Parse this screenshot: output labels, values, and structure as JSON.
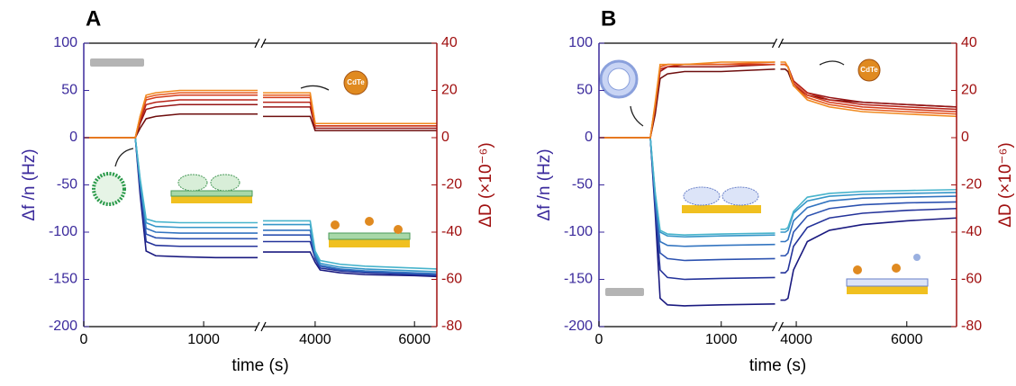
{
  "chart_data": [
    {
      "type": "line",
      "panel_label": "A",
      "xlabel": "time (s)",
      "ylabel": "Δf /n (Hz)",
      "y2label": "ΔD (×10⁻⁶)",
      "annotation": "CdTe",
      "xlim": [
        0,
        6450
      ],
      "x_break": [
        1450,
        2950
      ],
      "xticks": [
        0,
        1000,
        4000,
        6000
      ],
      "ylim": [
        -200,
        100
      ],
      "yticks": [
        -200,
        -150,
        -100,
        -50,
        0,
        50,
        100
      ],
      "y2lim": [
        -80,
        40
      ],
      "y2ticks": [
        -80,
        -60,
        -40,
        -20,
        0,
        20,
        40
      ],
      "x": [
        0,
        430,
        470,
        520,
        600,
        800,
        1100,
        1450,
        2000,
        2950,
        3900,
        4000,
        4100,
        4500,
        5000,
        6000,
        6450
      ],
      "series": [
        {
          "color": "#1a1a80",
          "values": [
            0,
            0,
            -60,
            -120,
            -125,
            -126,
            -127,
            -127,
            null,
            -121,
            -121,
            -132,
            -140,
            -143,
            -145,
            -146,
            -147
          ]
        },
        {
          "color": "#24339a",
          "values": [
            0,
            0,
            -55,
            -110,
            -114,
            -115,
            -115,
            -115,
            null,
            -110,
            -110,
            -128,
            -138,
            -141,
            -143,
            -145,
            -146
          ]
        },
        {
          "color": "#2c52b0",
          "values": [
            0,
            0,
            -50,
            -102,
            -106,
            -107,
            -107,
            -107,
            null,
            -103,
            -103,
            -126,
            -136,
            -140,
            -142,
            -144,
            -145
          ]
        },
        {
          "color": "#3274c0",
          "values": [
            0,
            0,
            -48,
            -96,
            -100,
            -101,
            -101,
            -101,
            null,
            -98,
            -98,
            -125,
            -135,
            -139,
            -141,
            -143,
            -144
          ]
        },
        {
          "color": "#3596c8",
          "values": [
            0,
            0,
            -45,
            -90,
            -94,
            -95,
            -95,
            -95,
            null,
            -92,
            -92,
            -122,
            -133,
            -137,
            -139,
            -141,
            -142
          ]
        },
        {
          "color": "#48b4cc",
          "values": [
            0,
            0,
            -43,
            -86,
            -89,
            -90,
            -90,
            -90,
            null,
            -88,
            -88,
            -120,
            -130,
            -134,
            -136,
            -138,
            -139
          ]
        },
        {
          "color": "#6e0e0e",
          "axis": "y2",
          "values": [
            0,
            0,
            4,
            8,
            9,
            10,
            10,
            10,
            null,
            9,
            9,
            3,
            3,
            3,
            3,
            3,
            3
          ]
        },
        {
          "color": "#961616",
          "axis": "y2",
          "values": [
            0,
            0,
            6,
            12,
            13,
            14,
            14,
            14,
            null,
            13,
            13,
            4,
            4,
            4,
            4,
            4,
            4
          ]
        },
        {
          "color": "#b82418",
          "axis": "y2",
          "values": [
            0,
            0,
            7,
            14,
            15,
            16,
            16,
            16,
            null,
            15,
            15,
            5,
            5,
            5,
            5,
            5,
            5
          ]
        },
        {
          "color": "#d43c1c",
          "axis": "y2",
          "values": [
            0,
            0,
            8,
            16,
            17,
            18,
            18,
            18,
            null,
            17,
            17,
            5,
            5,
            5,
            5,
            5,
            5
          ]
        },
        {
          "color": "#e65a1e",
          "axis": "y2",
          "values": [
            0,
            0,
            9,
            17,
            18,
            19,
            19,
            19,
            null,
            18,
            18,
            6,
            6,
            6,
            6,
            6,
            6
          ]
        },
        {
          "color": "#f08a20",
          "axis": "y2",
          "values": [
            0,
            0,
            9,
            18,
            19,
            20,
            20,
            20,
            null,
            19,
            19,
            6,
            6,
            6,
            6,
            6,
            6
          ]
        }
      ]
    },
    {
      "type": "line",
      "panel_label": "B",
      "xlabel": "time (s)",
      "ylabel": "Δf /n (Hz)",
      "y2label": "ΔD (×10⁻⁶)",
      "annotation": "CdTe",
      "xlim": [
        0,
        6900
      ],
      "x_break": [
        1440,
        3714
      ],
      "xticks": [
        0,
        1000,
        4000,
        6000
      ],
      "ylim": [
        -200,
        100
      ],
      "yticks": [
        -200,
        -150,
        -100,
        -50,
        0,
        50,
        100
      ],
      "y2lim": [
        -80,
        40
      ],
      "y2ticks": [
        -80,
        -60,
        -40,
        -20,
        0,
        20,
        40
      ],
      "x": [
        0,
        420,
        460,
        500,
        560,
        700,
        1000,
        1440,
        2000,
        3714,
        3800,
        3850,
        3950,
        4200,
        4600,
        5200,
        6000,
        6900
      ],
      "series": [
        {
          "color": "#1a1a80",
          "values": [
            0,
            0,
            -80,
            -170,
            -177,
            -178,
            -177,
            -176,
            null,
            -172,
            -172,
            -170,
            -140,
            -110,
            -98,
            -92,
            -88,
            -85
          ]
        },
        {
          "color": "#24339a",
          "values": [
            0,
            0,
            -75,
            -140,
            -148,
            -150,
            -149,
            -148,
            null,
            -143,
            -143,
            -140,
            -115,
            -95,
            -85,
            -80,
            -77,
            -75
          ]
        },
        {
          "color": "#2c52b0",
          "values": [
            0,
            0,
            -70,
            -122,
            -128,
            -130,
            -129,
            -128,
            null,
            -125,
            -125,
            -122,
            -100,
            -83,
            -75,
            -71,
            -69,
            -68
          ]
        },
        {
          "color": "#3274c0",
          "values": [
            0,
            0,
            -65,
            -110,
            -114,
            -115,
            -114,
            -113,
            null,
            -110,
            -110,
            -108,
            -88,
            -74,
            -67,
            -64,
            -63,
            -62
          ]
        },
        {
          "color": "#3596c8",
          "values": [
            0,
            0,
            -60,
            -100,
            -104,
            -105,
            -104,
            -103,
            null,
            -100,
            -100,
            -98,
            -80,
            -67,
            -62,
            -60,
            -59,
            -58
          ]
        },
        {
          "color": "#48b4cc",
          "values": [
            0,
            0,
            -58,
            -98,
            -102,
            -103,
            -102,
            -101,
            null,
            -97,
            -97,
            -95,
            -78,
            -63,
            -59,
            -57,
            -56,
            -55
          ]
        },
        {
          "color": "#6e0e0e",
          "axis": "y2",
          "values": [
            0,
            0,
            10,
            25,
            27,
            28,
            28,
            29,
            null,
            29,
            29,
            28,
            22,
            18,
            16,
            15,
            14,
            13
          ]
        },
        {
          "color": "#961616",
          "axis": "y2",
          "values": [
            0,
            0,
            12,
            28,
            30,
            30,
            30,
            31,
            null,
            31,
            31,
            30,
            24,
            19,
            17,
            15,
            14,
            13
          ]
        },
        {
          "color": "#b82418",
          "axis": "y2",
          "values": [
            0,
            0,
            13,
            29,
            30,
            31,
            31,
            31,
            null,
            31,
            31,
            30,
            24,
            19,
            16,
            14,
            13,
            12
          ]
        },
        {
          "color": "#d43c1c",
          "axis": "y2",
          "values": [
            0,
            0,
            14,
            30,
            31,
            31,
            31,
            31,
            null,
            31,
            31,
            30,
            23,
            18,
            15,
            13,
            12,
            11
          ]
        },
        {
          "color": "#e65a1e",
          "axis": "y2",
          "values": [
            0,
            0,
            14,
            30,
            31,
            31,
            31,
            32,
            null,
            31,
            31,
            30,
            22,
            17,
            14,
            12,
            11,
            10
          ]
        },
        {
          "color": "#f08a20",
          "axis": "y2",
          "values": [
            0,
            0,
            15,
            31,
            31,
            31,
            32,
            32,
            null,
            32,
            32,
            30,
            22,
            16,
            13,
            11,
            10,
            9
          ]
        }
      ]
    }
  ]
}
